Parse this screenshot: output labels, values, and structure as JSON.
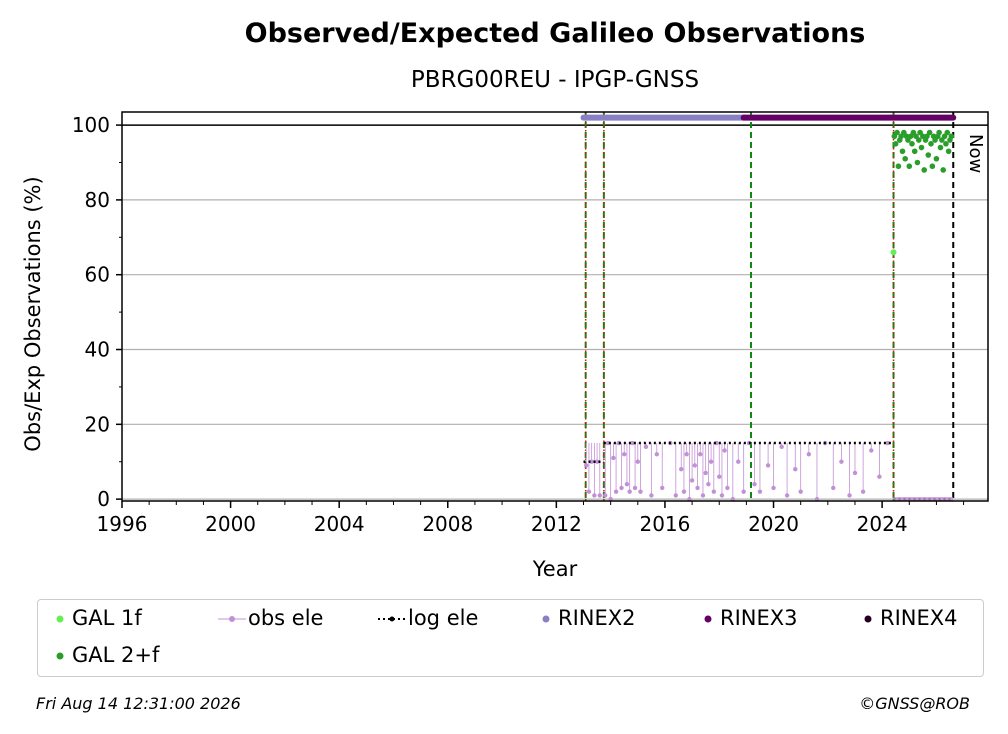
{
  "chart_data": {
    "type": "scatter",
    "title": "Observed/Expected Galileo Observations",
    "subtitle": "PBRG00REU - IPGP-GNSS",
    "xlabel": "Year",
    "ylabel": "Obs/Exp Observations (%)",
    "xlim": [
      1996,
      2027.9
    ],
    "ylim": [
      -0.5,
      103.5
    ],
    "x_ticks": [
      1996,
      2000,
      2004,
      2008,
      2012,
      2016,
      2020,
      2024
    ],
    "y_ticks": [
      0,
      20,
      40,
      60,
      80,
      100
    ],
    "grid": "horizontal",
    "now_label": "Now",
    "now_x": 2026.62,
    "reference_line_y": 100,
    "legend_placement": "bottom",
    "legend": [
      {
        "label": "GAL 1f",
        "color": "#66ee55",
        "marker": "dot"
      },
      {
        "label": "obs ele",
        "color": "#c290d4",
        "marker": "line-dot"
      },
      {
        "label": "log ele",
        "color": "#000000",
        "marker": "dotted-line"
      },
      {
        "label": "RINEX2",
        "color": "#8880c4",
        "marker": "dot"
      },
      {
        "label": "RINEX3",
        "color": "#660066",
        "marker": "dot"
      },
      {
        "label": "RINEX4",
        "color": "#220022",
        "marker": "dot"
      },
      {
        "label": "GAL 2+f",
        "color": "#2a9e2a",
        "marker": "dot"
      }
    ],
    "colors": {
      "gal_1f": "#66ee55",
      "gal_2f": "#2a9e2a",
      "obs_ele": "#c290d4",
      "log_ele": "#000000",
      "rinex2": "#8880c4",
      "rinex3": "#660066",
      "rinex4": "#220022",
      "event_green": "#118811",
      "event_red": "#dd1111",
      "now_line": "#000000"
    },
    "event_lines_green": [
      2013.08,
      2013.75,
      2019.17,
      2024.42
    ],
    "event_lines_red": [
      2013.08,
      2013.75,
      2024.42
    ],
    "rinex2_bar": {
      "x_start": 2013.0,
      "x_end": 2018.9,
      "y": 102
    },
    "rinex3_bar": {
      "x_start": 2018.9,
      "x_end": 2026.62,
      "y": 102
    },
    "log_ele_steps": [
      {
        "x_start": 2013.0,
        "x_end": 2013.75,
        "y": 10
      },
      {
        "x_start": 2013.75,
        "x_end": 2024.42,
        "y": 15
      },
      {
        "x_start": 2024.42,
        "x_end": 2026.62,
        "y": 0
      }
    ],
    "obs_ele_points": [
      [
        2013.1,
        9
      ],
      [
        2013.2,
        2
      ],
      [
        2013.3,
        10
      ],
      [
        2013.4,
        1
      ],
      [
        2013.5,
        10
      ],
      [
        2013.6,
        1
      ],
      [
        2013.8,
        1
      ],
      [
        2013.9,
        15
      ],
      [
        2014.0,
        0
      ],
      [
        2014.1,
        11
      ],
      [
        2014.2,
        2
      ],
      [
        2014.3,
        15
      ],
      [
        2014.4,
        3
      ],
      [
        2014.5,
        12
      ],
      [
        2014.6,
        4
      ],
      [
        2014.7,
        2
      ],
      [
        2014.8,
        15
      ],
      [
        2014.9,
        3
      ],
      [
        2015.0,
        10
      ],
      [
        2015.1,
        2
      ],
      [
        2015.3,
        14
      ],
      [
        2015.5,
        1
      ],
      [
        2015.7,
        12
      ],
      [
        2015.9,
        3
      ],
      [
        2016.2,
        15
      ],
      [
        2016.4,
        1
      ],
      [
        2016.6,
        8
      ],
      [
        2016.7,
        2
      ],
      [
        2016.8,
        12
      ],
      [
        2016.9,
        0
      ],
      [
        2017.0,
        5
      ],
      [
        2017.1,
        9
      ],
      [
        2017.2,
        3
      ],
      [
        2017.3,
        12
      ],
      [
        2017.4,
        1
      ],
      [
        2017.5,
        7
      ],
      [
        2017.6,
        4
      ],
      [
        2017.7,
        10
      ],
      [
        2017.8,
        2
      ],
      [
        2017.9,
        15
      ],
      [
        2018.0,
        6
      ],
      [
        2018.1,
        1
      ],
      [
        2018.2,
        13
      ],
      [
        2018.3,
        3
      ],
      [
        2018.5,
        0
      ],
      [
        2018.7,
        10
      ],
      [
        2018.9,
        2
      ],
      [
        2019.1,
        15
      ],
      [
        2019.3,
        4
      ],
      [
        2019.5,
        2
      ],
      [
        2019.8,
        9
      ],
      [
        2020.0,
        3
      ],
      [
        2020.3,
        14
      ],
      [
        2020.5,
        1
      ],
      [
        2020.8,
        8
      ],
      [
        2021.0,
        2
      ],
      [
        2021.3,
        12
      ],
      [
        2021.6,
        0
      ],
      [
        2021.9,
        15
      ],
      [
        2022.2,
        3
      ],
      [
        2022.5,
        10
      ],
      [
        2022.8,
        1
      ],
      [
        2023.0,
        7
      ],
      [
        2023.3,
        2
      ],
      [
        2023.6,
        13
      ],
      [
        2023.9,
        6
      ],
      [
        2024.2,
        15
      ]
    ],
    "gal_1f_points": [
      [
        2024.42,
        66
      ]
    ],
    "gal_2f_points": [
      [
        2024.45,
        97
      ],
      [
        2024.5,
        95
      ],
      [
        2024.55,
        98
      ],
      [
        2024.6,
        89
      ],
      [
        2024.65,
        96
      ],
      [
        2024.7,
        97
      ],
      [
        2024.75,
        93
      ],
      [
        2024.8,
        98
      ],
      [
        2024.85,
        91
      ],
      [
        2024.9,
        97
      ],
      [
        2024.95,
        96
      ],
      [
        2025.0,
        89
      ],
      [
        2025.05,
        97
      ],
      [
        2025.1,
        95
      ],
      [
        2025.15,
        98
      ],
      [
        2025.2,
        93
      ],
      [
        2025.25,
        97
      ],
      [
        2025.3,
        90
      ],
      [
        2025.35,
        96
      ],
      [
        2025.4,
        98
      ],
      [
        2025.45,
        94
      ],
      [
        2025.5,
        97
      ],
      [
        2025.55,
        88
      ],
      [
        2025.6,
        96
      ],
      [
        2025.65,
        97
      ],
      [
        2025.7,
        92
      ],
      [
        2025.75,
        98
      ],
      [
        2025.8,
        95
      ],
      [
        2025.85,
        89
      ],
      [
        2025.9,
        97
      ],
      [
        2025.95,
        96
      ],
      [
        2026.0,
        91
      ],
      [
        2026.05,
        97
      ],
      [
        2026.1,
        98
      ],
      [
        2026.15,
        94
      ],
      [
        2026.2,
        96
      ],
      [
        2026.25,
        88
      ],
      [
        2026.3,
        97
      ],
      [
        2026.35,
        95
      ],
      [
        2026.4,
        98
      ],
      [
        2026.45,
        93
      ],
      [
        2026.5,
        96
      ],
      [
        2026.55,
        97
      ]
    ]
  },
  "footer": {
    "timestamp": "Fri Aug 14 12:31:00 2026",
    "credit": "©GNSS@ROB"
  }
}
